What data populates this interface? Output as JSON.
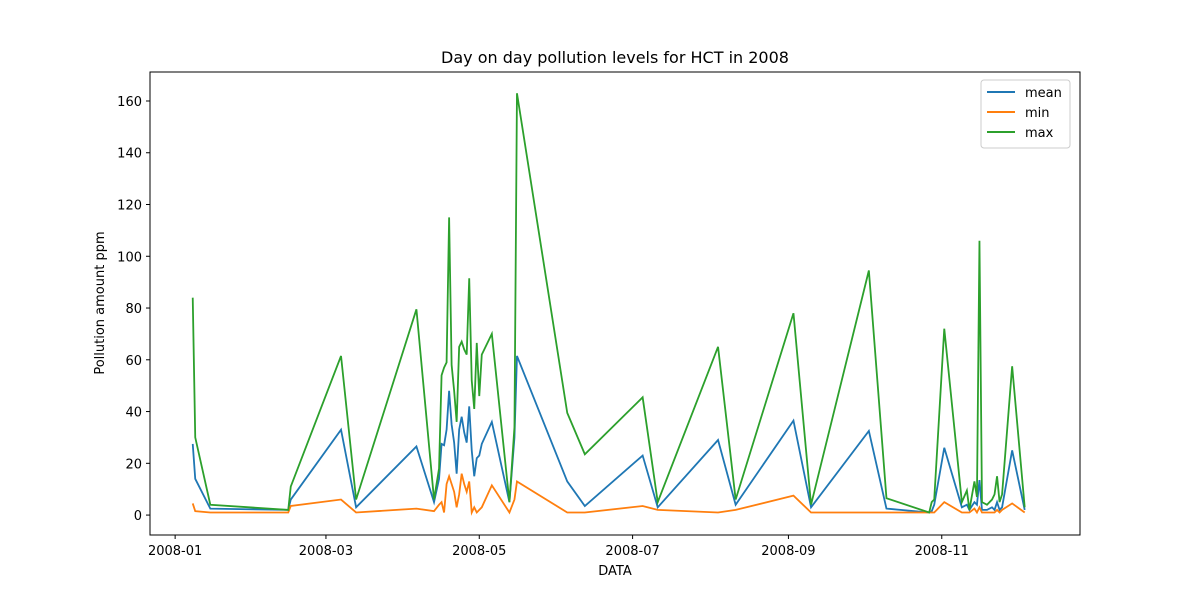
{
  "chart_data": {
    "type": "line",
    "title": "Day on day pollution levels for HCT in 2008",
    "xlabel": "DATA",
    "ylabel": "Pollution amount ppm",
    "x": [
      7,
      8,
      14,
      45,
      46,
      66,
      72,
      96,
      103,
      105,
      106,
      107,
      108,
      109,
      110,
      111,
      112,
      113,
      114,
      115,
      116,
      117,
      118,
      119,
      120,
      121,
      122,
      126,
      133,
      135,
      136,
      156,
      163,
      186,
      192,
      216,
      223,
      246,
      253,
      276,
      283,
      300,
      301,
      302,
      306,
      313,
      315,
      316,
      318,
      319,
      320,
      321,
      323,
      325,
      326,
      327,
      328,
      329,
      333,
      338
    ],
    "series": [
      {
        "name": "mean",
        "color": "#1f77b4",
        "values": [
          27.5,
          14,
          2.5,
          2,
          6,
          33,
          3,
          26.5,
          5,
          14,
          27.5,
          27,
          33,
          48,
          35,
          28,
          16,
          33,
          38,
          32,
          28,
          42,
          25,
          15,
          22,
          23,
          27.5,
          36,
          5,
          30,
          61.5,
          13,
          3.5,
          23,
          3,
          29,
          4,
          36.5,
          3,
          32.5,
          2.5,
          1,
          1.5,
          4,
          26,
          3,
          4,
          2,
          5,
          4,
          13.5,
          2,
          2,
          3,
          2,
          5,
          2,
          3,
          25,
          2
        ]
      },
      {
        "name": "min",
        "color": "#ff7f0e",
        "values": [
          4.5,
          1.5,
          1,
          1,
          3.5,
          6,
          1,
          2.5,
          1.5,
          4,
          5,
          1,
          12,
          15,
          12,
          9,
          3,
          8,
          16,
          12,
          9,
          13,
          1,
          3,
          1,
          2,
          3,
          11.5,
          1,
          6,
          13,
          1,
          1,
          3.5,
          2,
          1,
          2,
          7.5,
          1,
          1,
          1,
          1,
          1,
          1,
          5,
          1,
          1,
          1,
          2.5,
          1,
          3,
          1,
          1,
          1,
          1,
          2,
          1,
          2,
          4.5,
          1
        ]
      },
      {
        "name": "max",
        "color": "#2ca02c",
        "values": [
          84,
          30,
          4,
          2,
          11,
          61.5,
          6,
          79.5,
          6,
          18,
          54,
          57,
          59,
          115,
          58,
          48,
          36,
          65,
          67,
          64,
          62,
          91.5,
          52,
          41,
          66.5,
          46,
          62,
          70,
          5,
          34,
          163,
          39.5,
          23.5,
          45.5,
          5,
          65,
          6,
          78,
          4,
          94.5,
          6.5,
          1,
          5,
          6,
          72,
          5,
          9.5,
          2,
          13,
          7,
          106,
          5,
          4,
          6,
          8,
          15,
          5,
          8,
          57.5,
          3
        ]
      }
    ],
    "xlim": [
      -10,
      360
    ],
    "xticks": [
      {
        "value": 0,
        "label": "2008-01"
      },
      {
        "value": 60,
        "label": "2008-03"
      },
      {
        "value": 121,
        "label": "2008-05"
      },
      {
        "value": 182,
        "label": "2008-07"
      },
      {
        "value": 244,
        "label": "2008-09"
      },
      {
        "value": 305,
        "label": "2008-11"
      }
    ],
    "ylim": [
      -7.7,
      171.2
    ],
    "yticks": [
      0,
      20,
      40,
      60,
      80,
      100,
      120,
      140,
      160
    ],
    "grid": false,
    "legend": "upper right"
  }
}
